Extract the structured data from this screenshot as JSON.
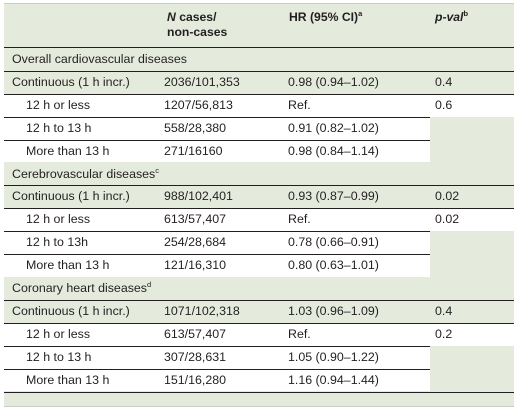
{
  "header": {
    "col_n": "N cases/ non-cases",
    "col_n_italic": "N",
    "col_n_rest": " cases/",
    "col_n_line2": "non-cases",
    "col_hr": "HR (95% CI)",
    "col_hr_sup": "a",
    "col_p": "p-val",
    "col_p_sup": "b"
  },
  "sections": [
    {
      "title": "Overall cardiovascular diseases",
      "title_sup": "",
      "rows": [
        {
          "label": "Continuous (1 h incr.)",
          "n": "2036/101,353",
          "hr": "0.98 (0.94–1.02)",
          "p": "0.4"
        },
        {
          "label": "12 h or less",
          "n": "1207/56,813",
          "hr": "Ref.",
          "p": "0.6"
        },
        {
          "label": "12 h to 13 h",
          "n": "558/28,380",
          "hr": "0.91 (0.82–1.02)",
          "p": ""
        },
        {
          "label": "More than 13 h",
          "n": "271/16160",
          "hr": "0.98 (0.84–1.14)",
          "p": ""
        }
      ]
    },
    {
      "title": "Cerebrovascular diseases",
      "title_sup": "c",
      "rows": [
        {
          "label": "Continuous (1 h incr.)",
          "n": "988/102,401",
          "hr": "0.93 (0.87–0.99)",
          "p": "0.02"
        },
        {
          "label": "12 h or less",
          "n": "613/57,407",
          "hr": "Ref.",
          "p": "0.02"
        },
        {
          "label": "12 h to 13h",
          "n": "254/28,684",
          "hr": "0.78 (0.66–0.91)",
          "p": ""
        },
        {
          "label": "More than 13 h",
          "n": "121/16,310",
          "hr": "0.80 (0.63–1.01)",
          "p": ""
        }
      ]
    },
    {
      "title": "Coronary heart diseases",
      "title_sup": "d",
      "rows": [
        {
          "label": "Continuous (1 h incr.)",
          "n": "1071/102,318",
          "hr": "1.03 (0.96–1.09)",
          "p": "0.4"
        },
        {
          "label": "12 h or less",
          "n": "613/57,407",
          "hr": "Ref.",
          "p": "0.2"
        },
        {
          "label": "12 h to 13 h",
          "n": "307/28,631",
          "hr": "1.05 (0.90–1.22)",
          "p": ""
        },
        {
          "label": "More than 13 h",
          "n": "151/16,280",
          "hr": "1.16 (0.94–1.44)",
          "p": ""
        }
      ]
    }
  ]
}
